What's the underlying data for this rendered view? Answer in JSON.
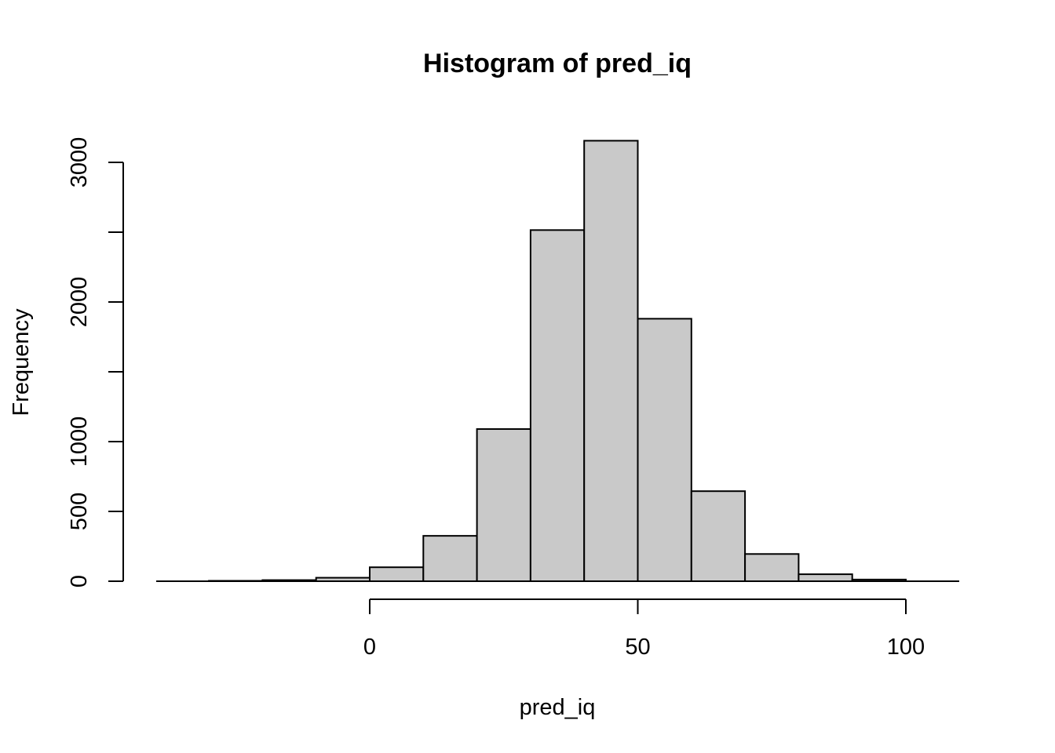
{
  "chart_data": {
    "type": "bar",
    "title": "Histogram of pred_iq",
    "xlabel": "pred_iq",
    "ylabel": "Frequency",
    "bins": [
      {
        "x0": -40,
        "x1": -30,
        "count": 0
      },
      {
        "x0": -30,
        "x1": -20,
        "count": 3
      },
      {
        "x0": -20,
        "x1": -10,
        "count": 8
      },
      {
        "x0": -10,
        "x1": 0,
        "count": 25
      },
      {
        "x0": 0,
        "x1": 10,
        "count": 100
      },
      {
        "x0": 10,
        "x1": 20,
        "count": 325
      },
      {
        "x0": 20,
        "x1": 30,
        "count": 1090
      },
      {
        "x0": 30,
        "x1": 40,
        "count": 2515
      },
      {
        "x0": 40,
        "x1": 50,
        "count": 3155
      },
      {
        "x0": 50,
        "x1": 60,
        "count": 1880
      },
      {
        "x0": 60,
        "x1": 70,
        "count": 645
      },
      {
        "x0": 70,
        "x1": 80,
        "count": 195
      },
      {
        "x0": 80,
        "x1": 90,
        "count": 50
      },
      {
        "x0": 90,
        "x1": 100,
        "count": 12
      },
      {
        "x0": 100,
        "x1": 110,
        "count": 0
      }
    ],
    "x_ticks": [
      0,
      50,
      100
    ],
    "x_tick_labels": [
      "0",
      "50",
      "100"
    ],
    "y_ticks": [
      0,
      500,
      1000,
      1500,
      2000,
      2500,
      3000
    ],
    "y_tick_labels": [
      "0",
      "500",
      "1000",
      "",
      "2000",
      "",
      "3000"
    ],
    "xlim": [
      -40,
      110
    ],
    "ylim": [
      0,
      3155
    ],
    "grid": false,
    "colors": {
      "bar_fill": "#c9c9c9",
      "bar_stroke": "#000000"
    }
  }
}
